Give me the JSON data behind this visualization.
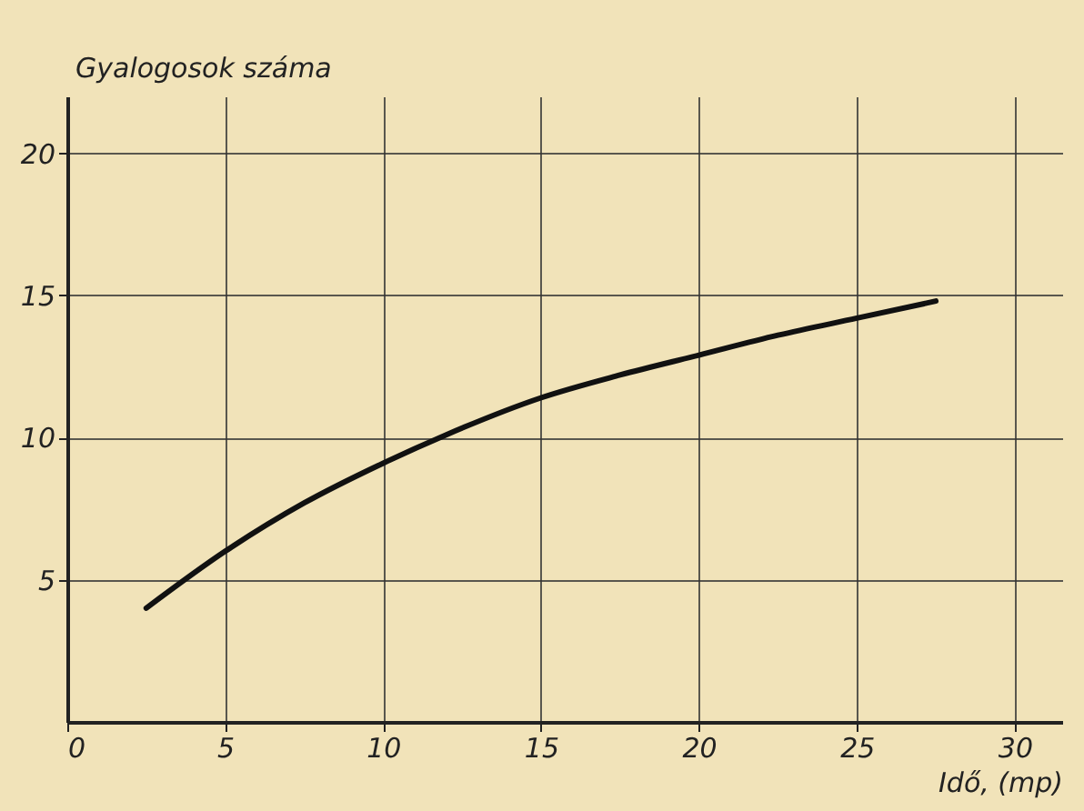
{
  "chart_data": {
    "type": "line",
    "xlabel": "Idő, (mp)",
    "ylabel": "Gyalogosok száma",
    "x": [
      2.5,
      5,
      7.5,
      10,
      12,
      15,
      17.5,
      20,
      22.5,
      25,
      27.5
    ],
    "series": [
      {
        "color": "#111111",
        "values": [
          4.0,
          6.0,
          7.7,
          9.1,
          10.1,
          11.4,
          12.2,
          12.9,
          13.6,
          14.2,
          14.8
        ]
      }
    ],
    "xlim": [
      0,
      31.5
    ],
    "ylim": [
      0,
      22
    ],
    "xticks": [
      0,
      5,
      10,
      15,
      20,
      25,
      30
    ],
    "yticks": [
      5,
      10,
      15,
      20
    ],
    "grid": true,
    "marker": "none",
    "line_style": "solid",
    "legend": false
  }
}
